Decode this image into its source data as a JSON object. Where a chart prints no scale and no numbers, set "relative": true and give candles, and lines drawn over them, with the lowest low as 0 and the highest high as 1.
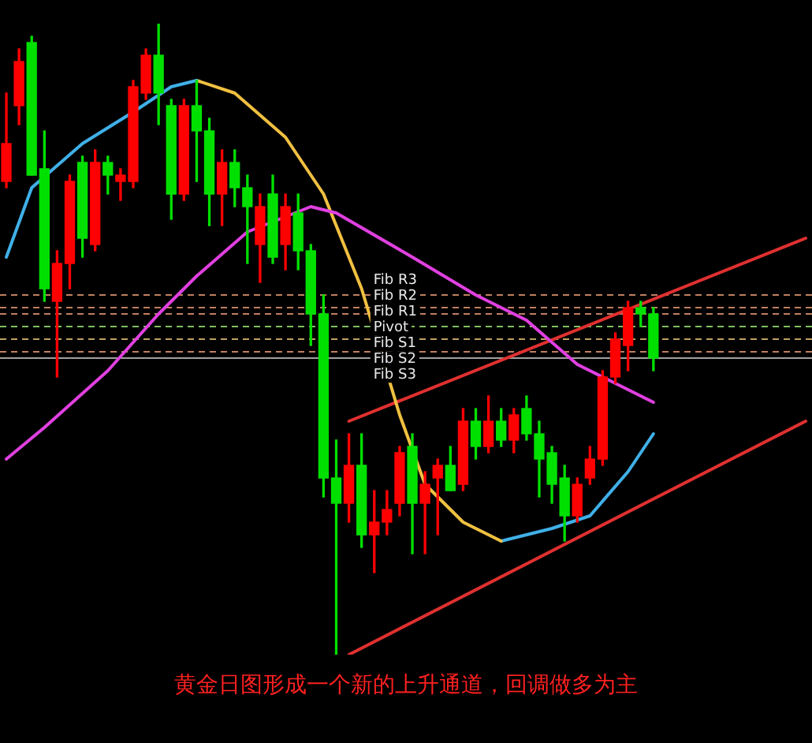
{
  "chart_data": {
    "type": "candlestick",
    "relative": true,
    "legend": false,
    "marker": "none",
    "categories": [
      null,
      null,
      null,
      null,
      null,
      null,
      null,
      null,
      null,
      null,
      null,
      null,
      null,
      null,
      null,
      null,
      null,
      null,
      null,
      null,
      null,
      null,
      null,
      null,
      null,
      null,
      null,
      null,
      null,
      null,
      null,
      null,
      null,
      null,
      null,
      null,
      null,
      null,
      null,
      null,
      null,
      null,
      null,
      null,
      null,
      null,
      null,
      null,
      null,
      null,
      null,
      null,
      null,
      null,
      null,
      null,
      null,
      null,
      null,
      null,
      null,
      null,
      null,
      null
    ],
    "ohlc": [
      [
        0.75,
        0.89,
        0.74,
        0.81
      ],
      [
        0.87,
        0.96,
        0.84,
        0.94
      ],
      [
        0.97,
        0.98,
        0.76,
        0.76
      ],
      [
        0.77,
        0.83,
        0.56,
        0.58
      ],
      [
        0.56,
        0.64,
        0.44,
        0.62
      ],
      [
        0.62,
        0.76,
        0.58,
        0.75
      ],
      [
        0.78,
        0.79,
        0.63,
        0.66
      ],
      [
        0.65,
        0.8,
        0.64,
        0.78
      ],
      [
        0.78,
        0.79,
        0.73,
        0.76
      ],
      [
        0.75,
        0.77,
        0.72,
        0.76
      ],
      [
        0.75,
        0.91,
        0.74,
        0.9
      ],
      [
        0.89,
        0.96,
        0.88,
        0.95
      ],
      [
        0.95,
        1,
        0.84,
        0.89
      ],
      [
        0.87,
        0.88,
        0.69,
        0.73
      ],
      [
        0.73,
        0.88,
        0.72,
        0.87
      ],
      [
        0.87,
        0.91,
        0.75,
        0.83
      ],
      [
        0.83,
        0.85,
        0.68,
        0.73
      ],
      [
        0.73,
        0.8,
        0.68,
        0.78
      ],
      [
        0.78,
        0.8,
        0.71,
        0.74
      ],
      [
        0.74,
        0.76,
        0.62,
        0.71
      ],
      [
        0.65,
        0.73,
        0.59,
        0.71
      ],
      [
        0.73,
        0.76,
        0.62,
        0.63
      ],
      [
        0.65,
        0.73,
        0.61,
        0.71
      ],
      [
        0.7,
        0.73,
        0.61,
        0.64
      ],
      [
        0.64,
        0.65,
        0.49,
        0.54
      ],
      [
        0.54,
        0.57,
        0.25,
        0.28
      ],
      [
        0.28,
        0.34,
        0,
        0.24
      ],
      [
        0.24,
        0.35,
        0.21,
        0.3
      ],
      [
        0.3,
        0.35,
        0.17,
        0.19
      ],
      [
        0.19,
        0.26,
        0.13,
        0.21
      ],
      [
        0.21,
        0.26,
        0.19,
        0.23
      ],
      [
        0.24,
        0.33,
        0.22,
        0.32
      ],
      [
        0.33,
        0.35,
        0.16,
        0.24
      ],
      [
        0.24,
        0.29,
        0.16,
        0.27
      ],
      [
        0.28,
        0.31,
        0.19,
        0.3
      ],
      [
        0.3,
        0.33,
        0.26,
        0.26
      ],
      [
        0.27,
        0.39,
        0.26,
        0.37
      ],
      [
        0.37,
        0.39,
        0.31,
        0.33
      ],
      [
        0.33,
        0.41,
        0.32,
        0.37
      ],
      [
        0.37,
        0.39,
        0.33,
        0.34
      ],
      [
        0.34,
        0.39,
        0.32,
        0.38
      ],
      [
        0.39,
        0.41,
        0.34,
        0.35
      ],
      [
        0.35,
        0.37,
        0.25,
        0.31
      ],
      [
        0.32,
        0.33,
        0.24,
        0.27
      ],
      [
        0.28,
        0.3,
        0.18,
        0.22
      ],
      [
        0.22,
        0.28,
        0.21,
        0.27
      ],
      [
        0.28,
        0.33,
        0.27,
        0.31
      ],
      [
        0.31,
        0.45,
        0.3,
        0.44
      ],
      [
        0.44,
        0.51,
        0.43,
        0.5
      ],
      [
        0.49,
        0.56,
        0.45,
        0.55
      ],
      [
        0.55,
        0.56,
        0.52,
        0.54
      ],
      [
        0.54,
        0.55,
        0.45,
        0.47
      ],
      null,
      null,
      null,
      null,
      null,
      null,
      null,
      null,
      null,
      null,
      null,
      null
    ],
    "colors": [
      "#ff0000",
      "#ff0000",
      "#00e000",
      "#00e000",
      "#ff0000",
      "#ff0000",
      "#00e000",
      "#ff0000",
      "#00e000",
      "#ff0000",
      "#ff0000",
      "#ff0000",
      "#00e000",
      "#00e000",
      "#ff0000",
      "#00e000",
      "#00e000",
      "#ff0000",
      "#00e000",
      "#00e000",
      "#ff0000",
      "#00e000",
      "#ff0000",
      "#00e000",
      "#00e000",
      "#00e000",
      "#00e000",
      "#ff0000",
      "#00e000",
      "#ff0000",
      "#ff0000",
      "#ff0000",
      "#00e000",
      "#ff0000",
      "#ff0000",
      "#00e000",
      "#ff0000",
      "#00e000",
      "#ff0000",
      "#00e000",
      "#ff0000",
      "#00e000",
      "#00e000",
      "#00e000",
      "#00e000",
      "#ff0000",
      "#ff0000",
      "#ff0000",
      "#ff0000",
      "#ff0000",
      "#00e000",
      "#00e000",
      null,
      null,
      null,
      null,
      null,
      null,
      null,
      null,
      null,
      null,
      null,
      null
    ],
    "series": [
      {
        "type": "line",
        "color": "#e040e0",
        "values": [
          0.31,
          null,
          null,
          0.36,
          null,
          null,
          null,
          null,
          0.45,
          null,
          null,
          null,
          0.54,
          null,
          null,
          0.6,
          null,
          null,
          null,
          0.67,
          null,
          null,
          null,
          null,
          0.71,
          null,
          0.7,
          null,
          null,
          null,
          null,
          null,
          0.63,
          null,
          null,
          null,
          null,
          0.57,
          null,
          null,
          null,
          0.53,
          null,
          null,
          null,
          0.46,
          null,
          null,
          0.43,
          null,
          null,
          0.4,
          null,
          null,
          null,
          null,
          null,
          null,
          null,
          null,
          null,
          null,
          null,
          null
        ]
      },
      {
        "type": "line",
        "color": "#40b0e8",
        "values": [
          0.63,
          null,
          0.74,
          null,
          null,
          null,
          0.81,
          null,
          null,
          null,
          0.86,
          null,
          null,
          0.9,
          null,
          0.91,
          null,
          null,
          null,
          null,
          null,
          null,
          null,
          null,
          null,
          null,
          null,
          null,
          null,
          null,
          null,
          null,
          null,
          null,
          null,
          null,
          null,
          null,
          null,
          null,
          null,
          null,
          null,
          null,
          null,
          null,
          null,
          null,
          null,
          null,
          null,
          null,
          null,
          null,
          null,
          null,
          null,
          null,
          null,
          null,
          null,
          null,
          null,
          null
        ]
      },
      {
        "type": "line",
        "color": "#f0c040",
        "values": [
          null,
          null,
          null,
          null,
          null,
          null,
          null,
          null,
          null,
          null,
          null,
          null,
          null,
          null,
          null,
          0.91,
          null,
          null,
          0.89,
          null,
          null,
          null,
          0.82,
          null,
          null,
          0.73,
          null,
          null,
          0.58,
          null,
          null,
          0.38,
          null,
          0.27,
          null,
          null,
          0.21,
          null,
          null,
          0.18,
          null,
          null,
          null,
          null,
          null,
          null,
          null,
          null,
          null,
          null,
          null,
          null,
          null,
          null,
          null,
          null,
          null,
          null,
          null,
          null,
          null,
          null,
          null,
          null
        ]
      },
      {
        "type": "line",
        "color": "#40b0e8",
        "values": [
          null,
          null,
          null,
          null,
          null,
          null,
          null,
          null,
          null,
          null,
          null,
          null,
          null,
          null,
          null,
          null,
          null,
          null,
          null,
          null,
          null,
          null,
          null,
          null,
          null,
          null,
          null,
          null,
          null,
          null,
          null,
          null,
          null,
          null,
          null,
          null,
          null,
          null,
          null,
          0.18,
          null,
          null,
          null,
          0.2,
          null,
          null,
          0.22,
          null,
          null,
          0.29,
          null,
          0.35,
          null,
          null,
          null,
          null,
          null,
          null,
          null,
          null,
          null,
          null,
          null,
          null
        ]
      },
      {
        "type": "line",
        "color": "#e03030",
        "values": [
          null,
          null,
          null,
          null,
          null,
          null,
          null,
          null,
          null,
          null,
          null,
          null,
          null,
          null,
          null,
          null,
          null,
          null,
          null,
          null,
          null,
          null,
          null,
          null,
          null,
          null,
          null,
          0,
          null,
          null,
          null,
          null,
          null,
          null,
          null,
          null,
          null,
          null,
          null,
          null,
          null,
          null,
          null,
          null,
          null,
          null,
          null,
          null,
          null,
          null,
          null,
          null,
          null,
          null,
          null,
          null,
          null,
          null,
          null,
          null,
          null,
          null,
          null,
          0.37
        ]
      },
      {
        "type": "line",
        "color": "#e03030",
        "values": [
          null,
          null,
          null,
          null,
          null,
          null,
          null,
          null,
          null,
          null,
          null,
          null,
          null,
          null,
          null,
          null,
          null,
          null,
          null,
          null,
          null,
          null,
          null,
          null,
          null,
          null,
          null,
          0.37,
          null,
          null,
          null,
          null,
          null,
          null,
          null,
          null,
          null,
          null,
          null,
          null,
          null,
          null,
          null,
          null,
          null,
          null,
          null,
          null,
          null,
          null,
          null,
          null,
          null,
          null,
          null,
          null,
          null,
          null,
          null,
          null,
          null,
          null,
          null,
          0.66
        ]
      }
    ],
    "ref_lines": [
      {
        "axis": "y",
        "value": 0.57,
        "label": "Fib R3",
        "color": "#c08060",
        "line_style": "dashed"
      },
      {
        "axis": "y",
        "value": 0.55,
        "label": "Fib R2",
        "color": "#c08060",
        "line_style": "dashed"
      },
      {
        "axis": "y",
        "value": 0.54,
        "label": "Fib R1",
        "color": "#c08060",
        "line_style": "dashed"
      },
      {
        "axis": "y",
        "value": 0.52,
        "label": "Pivot",
        "color": "#80c060",
        "line_style": "dashed"
      },
      {
        "axis": "y",
        "value": 0.5,
        "label": "Fib S1",
        "color": "#c0a060",
        "line_style": "dashed"
      },
      {
        "axis": "y",
        "value": 0.48,
        "label": "Fib S2",
        "color": "#c08060",
        "line_style": "dashed"
      },
      {
        "axis": "y",
        "value": 0.47,
        "label": "Fib S3",
        "color": "#a0a0a0",
        "line_style": "solid"
      }
    ],
    "annotations": [
      "黄金日图形成一个新的上升通道，回调做多为主"
    ]
  }
}
